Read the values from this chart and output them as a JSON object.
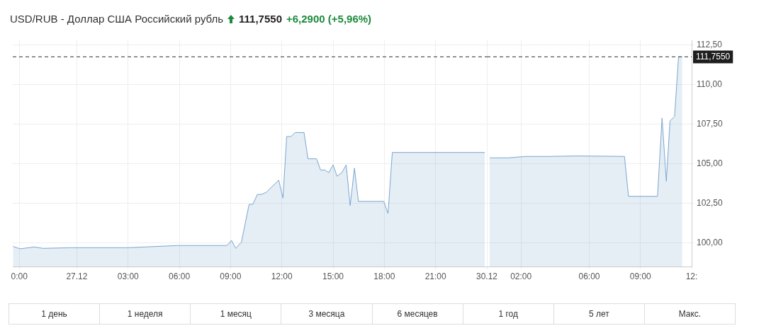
{
  "chart_data": [
    {
      "type": "area",
      "title": "USD/RUB - Доллар США Российский рубль",
      "annotations": [
        "111,7550",
        "+6,2900 (+5,96%)",
        "1 день",
        "1 неделя",
        "1 месяц",
        "3 месяца",
        "6 месяцев",
        "1 год",
        "5 лет",
        "Макс."
      ],
      "x": [
        "--12-26T20:16",
        "--12-26T20:41",
        "--12-26T21:31",
        "--12-26T22:01",
        "--12-26T23:40",
        "--12-27T02:59",
        "--12-27T05:54",
        "--12-27T08:48",
        "--12-27T09:03",
        "--12-27T09:18",
        "--12-27T09:38",
        "--12-27T10:05",
        "--12-27T10:18",
        "--12-27T10:34",
        "--12-27T10:49",
        "--12-27T11:05",
        "--12-27T11:49",
        "--12-27T12:04",
        "--12-27T12:17",
        "--12-27T12:32",
        "--12-27T12:47",
        "--12-27T13:18",
        "--12-27T13:32",
        "--12-27T14:02",
        "--12-27T14:16",
        "--12-27T14:31",
        "--12-27T14:45",
        "--12-27T15:00",
        "--12-27T15:14",
        "--12-27T15:31",
        "--12-27T15:46",
        "--12-27T16:00",
        "--12-27T16:15",
        "--12-27T16:29",
        "--12-27T17:58",
        "--12-27T18:13",
        "--12-27T18:28",
        "--12-27T23:53"
      ],
      "series": [
        {
          "color": "#7ba7cf",
          "values": [
            99.77,
            99.62,
            99.74,
            99.65,
            99.69,
            99.69,
            99.83,
            99.83,
            100.16,
            99.65,
            100.04,
            102.43,
            102.43,
            103.06,
            103.06,
            103.19,
            103.96,
            102.83,
            106.72,
            106.72,
            106.97,
            106.97,
            105.31,
            105.31,
            104.6,
            104.6,
            104.44,
            104.93,
            104.21,
            104.44,
            104.93,
            102.36,
            104.72,
            102.62,
            102.62,
            101.85,
            105.71,
            105.71
          ]
        }
      ],
      "xlim": [
        "--12-26T20:15",
        "--12-28T00:00"
      ],
      "xticks": [
        {
          "value": "--12-26T20:38",
          "label": "0:00"
        },
        {
          "value": "--12-27T00:00",
          "label": "27.12"
        },
        {
          "value": "--12-27T03:00",
          "label": "03:00"
        },
        {
          "value": "--12-27T06:00",
          "label": "06:00"
        },
        {
          "value": "--12-27T09:00",
          "label": "09:00"
        },
        {
          "value": "--12-27T12:00",
          "label": "12:00"
        },
        {
          "value": "--12-27T15:00",
          "label": "15:00"
        },
        {
          "value": "--12-27T18:00",
          "label": "18:00"
        },
        {
          "value": "--12-27T21:00",
          "label": "21:00"
        }
      ],
      "ylim": [
        98.5,
        112.8
      ],
      "yticks": [
        100,
        102.5,
        105,
        107.5,
        110,
        112.5
      ],
      "tick_labels": "x",
      "grid": true,
      "marker": "none",
      "ref_lines": [
        {
          "axis": "y",
          "value": 111.755,
          "color": "#333333",
          "line_style": "dashed"
        }
      ]
    },
    {
      "type": "area",
      "x": [
        "--12-30T00:10",
        "--12-30T01:17",
        "--12-30T02:15",
        "--12-30T03:37",
        "--12-30T05:17",
        "--12-30T08:04",
        "--12-30T08:18",
        "--12-30T10:00",
        "--12-30T10:16",
        "--12-30T10:31",
        "--12-30T10:44",
        "--12-30T11:00",
        "--12-30T11:14",
        "--12-30T11:27"
      ],
      "series": [
        {
          "color": "#7ba7cf",
          "values": [
            105.37,
            105.37,
            105.46,
            105.46,
            105.49,
            105.46,
            102.94,
            102.94,
            107.89,
            103.89,
            107.7,
            107.99,
            111.755,
            111.755
          ]
        }
      ],
      "xlim": [
        "--12-30T00:00",
        "--12-30T12:00"
      ],
      "xticks": [
        {
          "value": "--12-30T00:00",
          "label": "30.12"
        },
        {
          "value": "--12-30T02:00",
          "label": "02:00"
        },
        {
          "value": "--12-30T06:00",
          "label": "06:00"
        },
        {
          "value": "--12-30T09:00",
          "label": "09:00"
        },
        {
          "value": "--12-30T12:00",
          "label": "12:"
        }
      ],
      "ylim": [
        98.5,
        112.8
      ],
      "yticks": [
        {
          "value": 100,
          "label": "100,00"
        },
        {
          "value": 102.5,
          "label": "102,50"
        },
        {
          "value": 105,
          "label": "105,00"
        },
        {
          "value": 107.5,
          "label": "107,50"
        },
        {
          "value": 110,
          "label": "110,00"
        },
        {
          "value": 112.5,
          "label": "112,50"
        }
      ],
      "grid": true,
      "marker": "none",
      "ref_lines": [
        {
          "axis": "y",
          "value": 111.755,
          "label": "111,7550",
          "color": "#333333",
          "line_style": "dashed"
        }
      ]
    }
  ]
}
